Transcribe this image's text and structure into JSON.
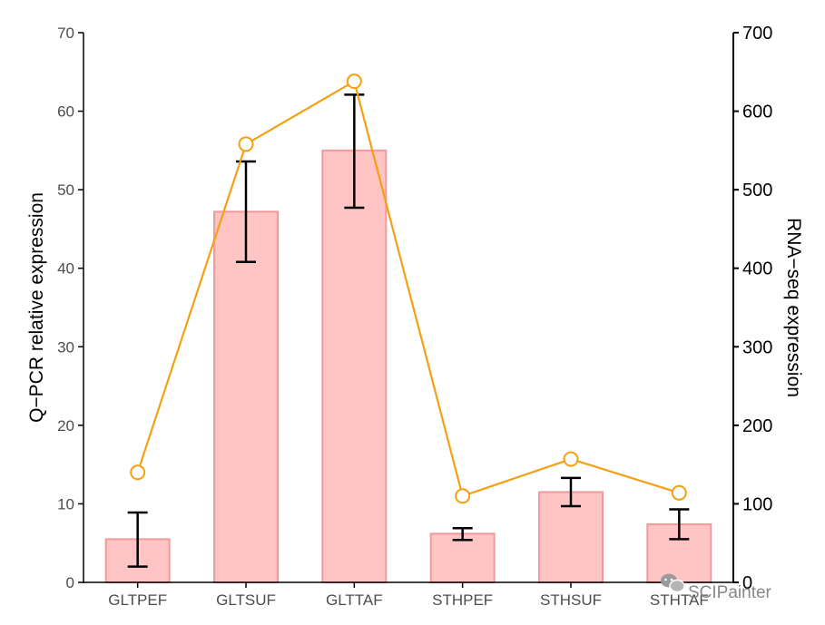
{
  "chart_data": {
    "type": "bar",
    "categories": [
      "GLTPEF",
      "GLTSUF",
      "GLTTAF",
      "STHPEF",
      "STHSUF",
      "STHTAF"
    ],
    "series": [
      {
        "type": "bar",
        "axis": "left",
        "values": [
          5.5,
          47.2,
          55.0,
          6.2,
          11.5,
          7.4
        ],
        "error_low": [
          2.0,
          40.8,
          47.7,
          5.4,
          9.7,
          5.5
        ],
        "error_high": [
          8.9,
          53.6,
          62.1,
          6.9,
          13.3,
          9.3
        ]
      },
      {
        "type": "line",
        "axis": "right",
        "values": [
          140,
          558,
          638,
          110,
          157,
          114
        ]
      }
    ],
    "ylabel": "Q−PCR relative expression",
    "y2label": "RNA−seq expression",
    "ylim": [
      0,
      70
    ],
    "y2lim": [
      0,
      700
    ],
    "yticks": [
      "0",
      "10",
      "20",
      "30",
      "40",
      "50",
      "60",
      "70"
    ],
    "y2ticks": [
      "0",
      "100",
      "200",
      "300",
      "400",
      "500",
      "600",
      "700"
    ],
    "grid": false,
    "legend": "none",
    "colors": {
      "bar_fill": "#ffc4c4",
      "bar_stroke": "#f29a9a",
      "error_bar": "#000000",
      "line": "#f5a013",
      "marker_fill": "#ffffff"
    }
  },
  "watermark": {
    "text": "SCIPainter",
    "icon": "wechat-icon"
  }
}
